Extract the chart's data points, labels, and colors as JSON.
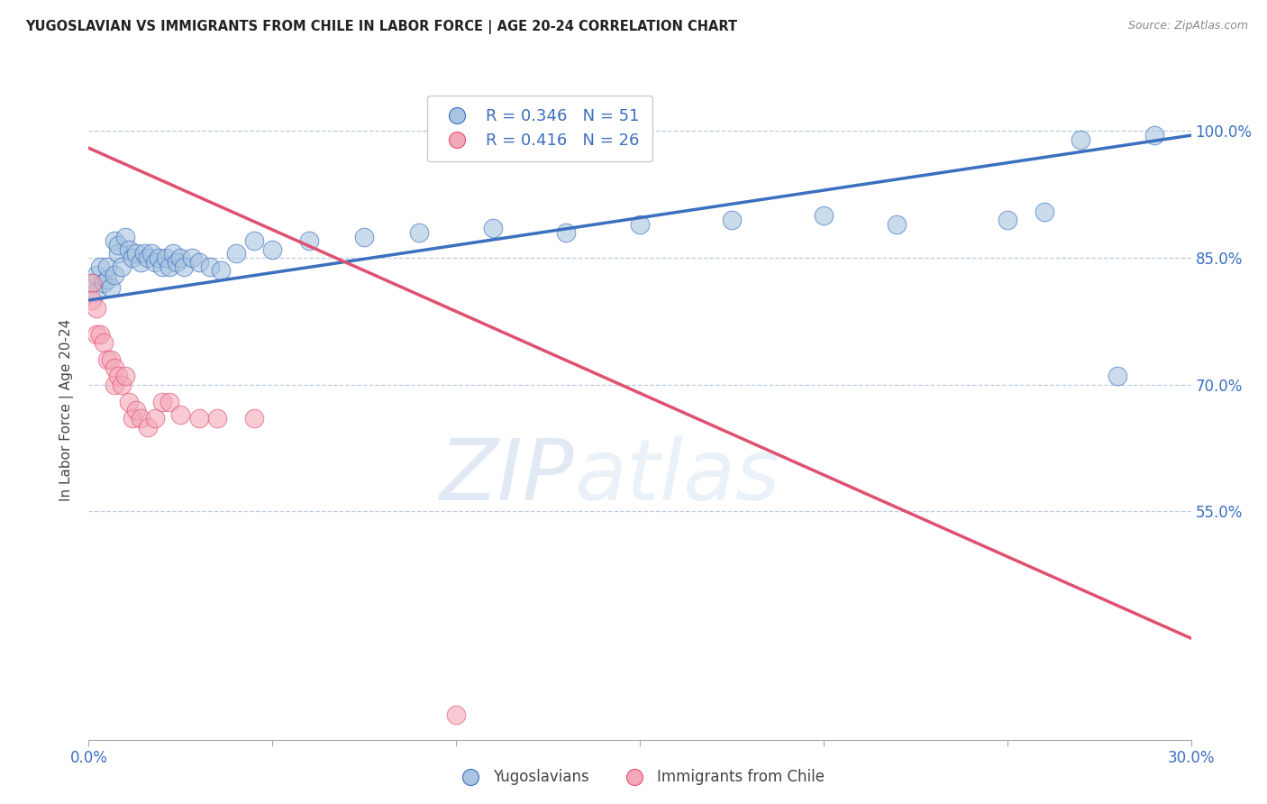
{
  "title": "YUGOSLAVIAN VS IMMIGRANTS FROM CHILE IN LABOR FORCE | AGE 20-24 CORRELATION CHART",
  "source": "Source: ZipAtlas.com",
  "ylabel": "In Labor Force | Age 20-24",
  "legend_labels": [
    "Yugoslavians",
    "Immigrants from Chile"
  ],
  "blue_R": "R = 0.346",
  "blue_N": "N = 51",
  "pink_R": "R = 0.416",
  "pink_N": "N = 26",
  "blue_color": "#A8C4E0",
  "pink_color": "#F4A8B8",
  "trend_blue": "#3B6FBF",
  "trend_pink": "#E05070",
  "watermark_zip": "ZIP",
  "watermark_atlas": "atlas",
  "xlim": [
    0.0,
    0.3
  ],
  "ylim": [
    0.28,
    1.06
  ],
  "yticks": [
    0.55,
    0.7,
    0.85,
    1.0
  ],
  "ytick_labels": [
    "55.0%",
    "70.0%",
    "85.0%",
    "100.0%"
  ],
  "xticks": [
    0.0,
    0.05,
    0.1,
    0.15,
    0.2,
    0.25,
    0.3
  ],
  "blue_x": [
    0.001,
    0.002,
    0.002,
    0.003,
    0.004,
    0.005,
    0.005,
    0.006,
    0.007,
    0.007,
    0.008,
    0.008,
    0.009,
    0.01,
    0.011,
    0.012,
    0.013,
    0.014,
    0.015,
    0.016,
    0.017,
    0.018,
    0.019,
    0.02,
    0.021,
    0.022,
    0.023,
    0.024,
    0.025,
    0.026,
    0.028,
    0.03,
    0.033,
    0.036,
    0.04,
    0.045,
    0.05,
    0.06,
    0.075,
    0.09,
    0.11,
    0.13,
    0.15,
    0.175,
    0.2,
    0.22,
    0.25,
    0.26,
    0.27,
    0.28,
    0.29
  ],
  "blue_y": [
    0.82,
    0.81,
    0.83,
    0.84,
    0.82,
    0.825,
    0.84,
    0.815,
    0.83,
    0.87,
    0.855,
    0.865,
    0.84,
    0.875,
    0.86,
    0.85,
    0.855,
    0.845,
    0.855,
    0.85,
    0.855,
    0.845,
    0.85,
    0.84,
    0.85,
    0.84,
    0.855,
    0.845,
    0.85,
    0.84,
    0.85,
    0.845,
    0.84,
    0.835,
    0.855,
    0.87,
    0.86,
    0.87,
    0.875,
    0.88,
    0.885,
    0.88,
    0.89,
    0.895,
    0.9,
    0.89,
    0.895,
    0.905,
    0.99,
    0.71,
    0.995
  ],
  "pink_x": [
    0.001,
    0.001,
    0.002,
    0.002,
    0.003,
    0.004,
    0.005,
    0.006,
    0.007,
    0.007,
    0.008,
    0.009,
    0.01,
    0.011,
    0.012,
    0.013,
    0.014,
    0.016,
    0.018,
    0.02,
    0.022,
    0.025,
    0.03,
    0.035,
    0.045,
    0.1
  ],
  "pink_y": [
    0.82,
    0.8,
    0.79,
    0.76,
    0.76,
    0.75,
    0.73,
    0.73,
    0.72,
    0.7,
    0.71,
    0.7,
    0.71,
    0.68,
    0.66,
    0.67,
    0.66,
    0.65,
    0.66,
    0.68,
    0.68,
    0.665,
    0.66,
    0.66,
    0.66,
    0.31
  ],
  "blue_trend_x": [
    0.0,
    0.3
  ],
  "blue_trend_y": [
    0.8,
    0.995
  ],
  "pink_trend_x": [
    0.0,
    0.3
  ],
  "pink_trend_y": [
    0.98,
    0.4
  ]
}
